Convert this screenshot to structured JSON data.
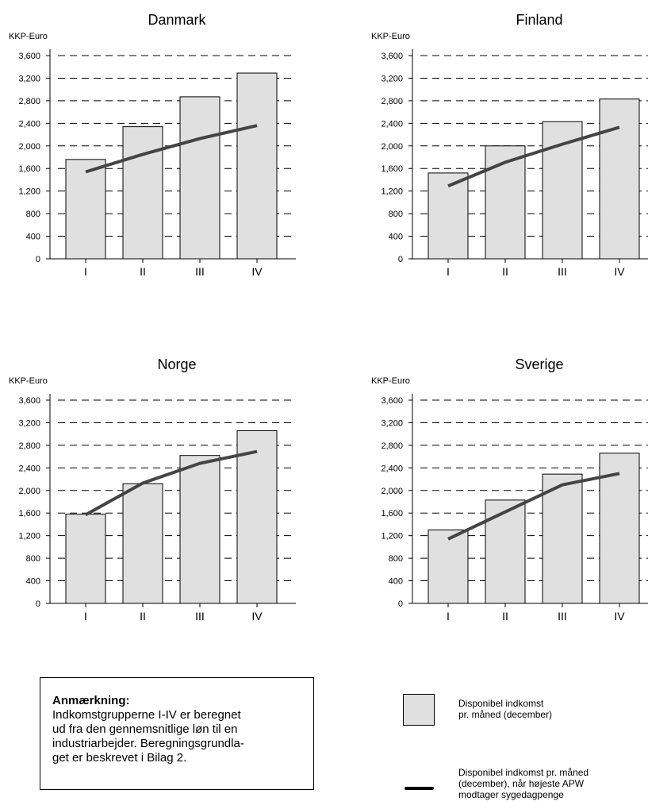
{
  "chart_data": [
    {
      "type": "bar",
      "title": "Danmark",
      "ylabel": "KKP-Euro",
      "categories": [
        "I",
        "II",
        "III",
        "IV"
      ],
      "ylim": [
        0,
        3600
      ],
      "yticks": [
        "0",
        "400",
        "800",
        "1,200",
        "1,600",
        "2,000",
        "2,400",
        "2,800",
        "3,200",
        "3,600"
      ],
      "series": [
        {
          "name": "Disponibel indkomst pr. måned (december)",
          "kind": "bar",
          "values": [
            1760,
            2340,
            2870,
            3290
          ]
        },
        {
          "name": "Disponibel indkomst pr. måned (december), når højeste APW modtager sygedagpenge",
          "kind": "line",
          "values": [
            1540,
            1850,
            2130,
            2360
          ]
        }
      ]
    },
    {
      "type": "bar",
      "title": "Finland",
      "ylabel": "KKP-Euro",
      "categories": [
        "I",
        "II",
        "III",
        "IV"
      ],
      "ylim": [
        0,
        3600
      ],
      "yticks": [
        "0",
        "400",
        "800",
        "1,200",
        "1,600",
        "2,000",
        "2,400",
        "2,800",
        "3,200",
        "3,600"
      ],
      "series": [
        {
          "name": "Disponibel indkomst pr. måned (december)",
          "kind": "bar",
          "values": [
            1520,
            2000,
            2430,
            2830
          ]
        },
        {
          "name": "Disponibel indkomst pr. måned (december), når højeste APW modtager sygedagpenge",
          "kind": "line",
          "values": [
            1290,
            1710,
            2030,
            2330
          ]
        }
      ]
    },
    {
      "type": "bar",
      "title": "Norge",
      "ylabel": "KKP-Euro",
      "categories": [
        "I",
        "II",
        "III",
        "IV"
      ],
      "ylim": [
        0,
        3600
      ],
      "yticks": [
        "0",
        "400",
        "800",
        "1,200",
        "1,600",
        "2,000",
        "2,400",
        "2,800",
        "3,200",
        "3,600"
      ],
      "series": [
        {
          "name": "Disponibel indkomst pr. måned (december)",
          "kind": "bar",
          "values": [
            1580,
            2120,
            2620,
            3060
          ]
        },
        {
          "name": "Disponibel indkomst pr. måned (december), når højeste APW modtager sygedagpenge",
          "kind": "line",
          "values": [
            1570,
            2130,
            2480,
            2690
          ]
        }
      ]
    },
    {
      "type": "bar",
      "title": "Sverige",
      "ylabel": "KKP-Euro",
      "categories": [
        "I",
        "II",
        "III",
        "IV"
      ],
      "ylim": [
        0,
        3600
      ],
      "yticks": [
        "0",
        "400",
        "800",
        "1,200",
        "1,600",
        "2,000",
        "2,400",
        "2,800",
        "3,200",
        "3,600"
      ],
      "series": [
        {
          "name": "Disponibel indkomst pr. måned (december)",
          "kind": "bar",
          "values": [
            1300,
            1830,
            2290,
            2660
          ]
        },
        {
          "name": "Disponibel indkomst pr. måned (december), når højeste APW modtager sygedagpenge",
          "kind": "line",
          "values": [
            1140,
            1620,
            2100,
            2300
          ]
        }
      ]
    }
  ],
  "colors": {
    "bar_fill": "#e0e0e0",
    "bar_stroke": "#000000",
    "line": "#444444",
    "grid": "#000000"
  },
  "grid": "dashed horizontal",
  "note": {
    "title": "Anmærkning:",
    "text": "Indkomstgrupperne I-IV er beregnet\nud fra den gennemsnitlige løn til en\nindustriarbejder. Beregningsgrundla-\nget er beskrevet i Bilag 2."
  },
  "legend": {
    "bar_label": "Disponibel indkomst\npr. måned (december)",
    "line_label": "Disponibel indkomst pr. måned\n(december), når højeste APW\nmodtager sygedagpenge"
  }
}
